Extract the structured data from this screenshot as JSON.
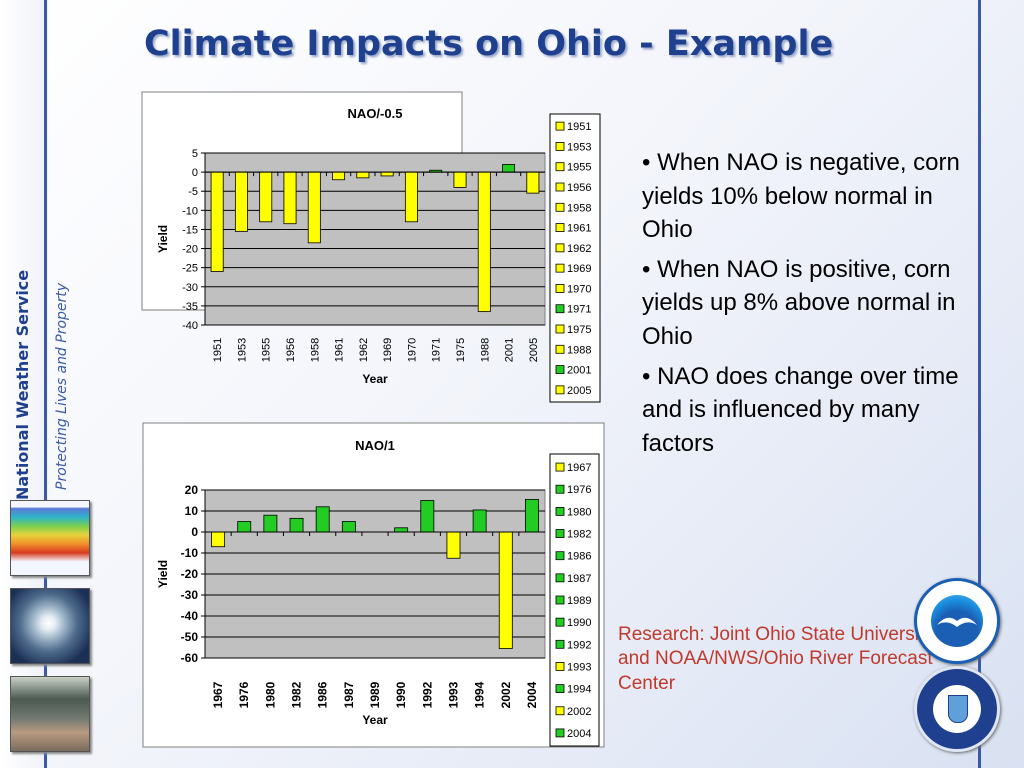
{
  "slide": {
    "title": "Climate Impacts on Ohio - Example",
    "org_name": "National Weather Service",
    "tagline": "Protecting Lives and Property",
    "bullets": [
      "• When NAO is negative, corn yields 10% below normal in Ohio",
      "• When NAO is positive, corn yields up 8% above normal in Ohio",
      "• NAO does change over time and is influenced by many factors"
    ],
    "research": "Research: Joint Ohio State University and NOAA/NWS/Ohio River Forecast Center",
    "logos": [
      "noaa-seal",
      "department-of-commerce-seal"
    ],
    "colors": {
      "title": "#1f3f8f",
      "research": "#c0392b",
      "positive": "#22cc22",
      "negative": "#ffff00",
      "plot_bg": "#c0c0c0"
    }
  },
  "chart_data": [
    {
      "type": "bar",
      "title": "NAO/-0.5",
      "xlabel": "Year",
      "ylabel": "Yield",
      "ylim": [
        -40,
        5
      ],
      "yticks": [
        5,
        0,
        -5,
        -10,
        -15,
        -20,
        -25,
        -30,
        -35,
        -40
      ],
      "grid": true,
      "legend": "right",
      "categories": [
        "1951",
        "1953",
        "1955",
        "1956",
        "1958",
        "1961",
        "1962",
        "1969",
        "1970",
        "1971",
        "1975",
        "1988",
        "2001",
        "2005"
      ],
      "values": [
        -26,
        -15.5,
        -13,
        -13.5,
        -18.5,
        -2,
        -1.5,
        -1,
        -13,
        0.5,
        -4,
        -36.5,
        2,
        -5.5
      ]
    },
    {
      "type": "bar",
      "title": "NAO/1",
      "xlabel": "Year",
      "ylabel": "Yield",
      "ylim": [
        -60,
        20
      ],
      "yticks": [
        20,
        10,
        0,
        -10,
        -20,
        -30,
        -40,
        -50,
        -60
      ],
      "grid": true,
      "legend": "right",
      "categories": [
        "1967",
        "1976",
        "1980",
        "1982",
        "1986",
        "1987",
        "1989",
        "1990",
        "1992",
        "1993",
        "1994",
        "2002",
        "2004"
      ],
      "values": [
        -7,
        5,
        8,
        6.5,
        12,
        5,
        0,
        2,
        15,
        -12.5,
        10.5,
        -55.5,
        15.5
      ]
    }
  ]
}
